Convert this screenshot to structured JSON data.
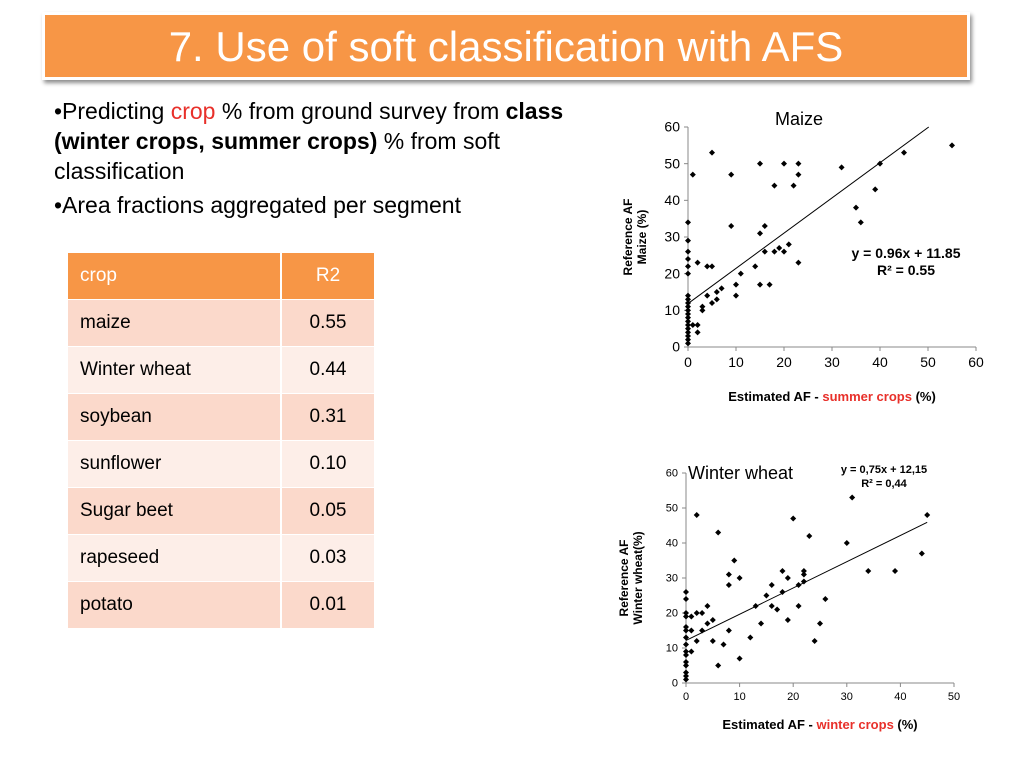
{
  "slide": {
    "title": "7. Use of soft classification with AFS",
    "bullet1": {
      "prefix": "•Predicting ",
      "crop_word": "crop",
      "mid": " % from ground survey from ",
      "bold": "class (winter crops, summer crops)",
      "suffix": " % from soft classification"
    },
    "bullet2": "•Area fractions aggregated per segment"
  },
  "table": {
    "headers": [
      "crop",
      "R2"
    ],
    "rows": [
      [
        "maize",
        "0.55"
      ],
      [
        "Winter wheat",
        "0.44"
      ],
      [
        "soybean",
        "0.31"
      ],
      [
        "sunflower",
        "0.10"
      ],
      [
        "Sugar beet",
        "0.05"
      ],
      [
        "rapeseed",
        "0.03"
      ],
      [
        "potato",
        "0.01"
      ]
    ],
    "colors": {
      "header": "#f79646",
      "row_odd": "#fbd9cb",
      "row_even": "#fdeee8"
    }
  },
  "chart_data": [
    {
      "type": "scatter",
      "title": "Maize",
      "ylabel": "Reference  AF Maize (%)",
      "xlabel": "Estimated AF - summer crops (%)",
      "xlabel_parts": [
        "Estimated AF - ",
        "summer crops",
        " (%)"
      ],
      "xlim": [
        0,
        60
      ],
      "ylim": [
        0,
        60
      ],
      "xticks": [
        0,
        10,
        20,
        30,
        40,
        50,
        60
      ],
      "yticks": [
        0,
        10,
        20,
        30,
        40,
        50,
        60
      ],
      "trendline": {
        "slope": 0.96,
        "intercept": 11.85,
        "label1": "y = 0.96x + 11.85",
        "label2": "R² = 0.55"
      },
      "points": [
        [
          0,
          1
        ],
        [
          0,
          2
        ],
        [
          0,
          3
        ],
        [
          0,
          4
        ],
        [
          0,
          5
        ],
        [
          0,
          6
        ],
        [
          0,
          7
        ],
        [
          0,
          8
        ],
        [
          0,
          9
        ],
        [
          0,
          10
        ],
        [
          0,
          11
        ],
        [
          0,
          12
        ],
        [
          0,
          13
        ],
        [
          0,
          14
        ],
        [
          0,
          20
        ],
        [
          0,
          22
        ],
        [
          0,
          24
        ],
        [
          0,
          26
        ],
        [
          0,
          29
        ],
        [
          0,
          34
        ],
        [
          1,
          6
        ],
        [
          1,
          47
        ],
        [
          2,
          6
        ],
        [
          2,
          4
        ],
        [
          2,
          23
        ],
        [
          3,
          10
        ],
        [
          3,
          11
        ],
        [
          4,
          14
        ],
        [
          4,
          22
        ],
        [
          5,
          53
        ],
        [
          5,
          12
        ],
        [
          5,
          22
        ],
        [
          6,
          13
        ],
        [
          6,
          15
        ],
        [
          7,
          16
        ],
        [
          9,
          33
        ],
        [
          9,
          47
        ],
        [
          10,
          17
        ],
        [
          10,
          14
        ],
        [
          11,
          20
        ],
        [
          14,
          22
        ],
        [
          15,
          31
        ],
        [
          15,
          17
        ],
        [
          15,
          50
        ],
        [
          16,
          33
        ],
        [
          16,
          26
        ],
        [
          17,
          17
        ],
        [
          18,
          26
        ],
        [
          18,
          44
        ],
        [
          19,
          27
        ],
        [
          20,
          26
        ],
        [
          20,
          50
        ],
        [
          21,
          28
        ],
        [
          22,
          44
        ],
        [
          23,
          23
        ],
        [
          23,
          47
        ],
        [
          23,
          50
        ],
        [
          32,
          49
        ],
        [
          35,
          38
        ],
        [
          36,
          34
        ],
        [
          39,
          43
        ],
        [
          40,
          50
        ],
        [
          45,
          53
        ],
        [
          55,
          55
        ]
      ]
    },
    {
      "type": "scatter",
      "title": "Winter wheat",
      "ylabel": "Reference  AF Winter wheat(%)",
      "xlabel": "Estimated AF - winter crops (%)",
      "xlabel_parts": [
        "Estimated AF - ",
        "winter crops",
        " (%)"
      ],
      "xlim": [
        0,
        50
      ],
      "ylim": [
        0,
        60
      ],
      "xticks": [
        0,
        10,
        20,
        30,
        40,
        50
      ],
      "yticks": [
        0,
        10,
        20,
        30,
        40,
        50,
        60
      ],
      "trendline": {
        "slope": 0.75,
        "intercept": 12.15,
        "label1": "y = 0,75x + 12,15",
        "label2": "R² = 0,44"
      },
      "points": [
        [
          0,
          1
        ],
        [
          0,
          2
        ],
        [
          0,
          3
        ],
        [
          0,
          5
        ],
        [
          0,
          6
        ],
        [
          0,
          8
        ],
        [
          0,
          9
        ],
        [
          0,
          11
        ],
        [
          0,
          13
        ],
        [
          0,
          15
        ],
        [
          0,
          16
        ],
        [
          0,
          19
        ],
        [
          0,
          20
        ],
        [
          0,
          24
        ],
        [
          0,
          26
        ],
        [
          1,
          19
        ],
        [
          1,
          15
        ],
        [
          1,
          9
        ],
        [
          2,
          20
        ],
        [
          2,
          48
        ],
        [
          2,
          12
        ],
        [
          3,
          15
        ],
        [
          3,
          20
        ],
        [
          4,
          22
        ],
        [
          4,
          17
        ],
        [
          5,
          18
        ],
        [
          5,
          12
        ],
        [
          6,
          5
        ],
        [
          6,
          43
        ],
        [
          7,
          11
        ],
        [
          8,
          28
        ],
        [
          8,
          31
        ],
        [
          8,
          15
        ],
        [
          9,
          35
        ],
        [
          10,
          30
        ],
        [
          10,
          7
        ],
        [
          12,
          13
        ],
        [
          13,
          22
        ],
        [
          14,
          17
        ],
        [
          15,
          25
        ],
        [
          16,
          22
        ],
        [
          16,
          28
        ],
        [
          17,
          21
        ],
        [
          18,
          32
        ],
        [
          18,
          26
        ],
        [
          19,
          18
        ],
        [
          19,
          30
        ],
        [
          20,
          47
        ],
        [
          21,
          22
        ],
        [
          21,
          28
        ],
        [
          22,
          31
        ],
        [
          22,
          29
        ],
        [
          22,
          32
        ],
        [
          23,
          42
        ],
        [
          24,
          12
        ],
        [
          25,
          17
        ],
        [
          26,
          24
        ],
        [
          30,
          40
        ],
        [
          31,
          53
        ],
        [
          34,
          32
        ],
        [
          39,
          32
        ],
        [
          44,
          37
        ],
        [
          45,
          48
        ]
      ]
    }
  ]
}
